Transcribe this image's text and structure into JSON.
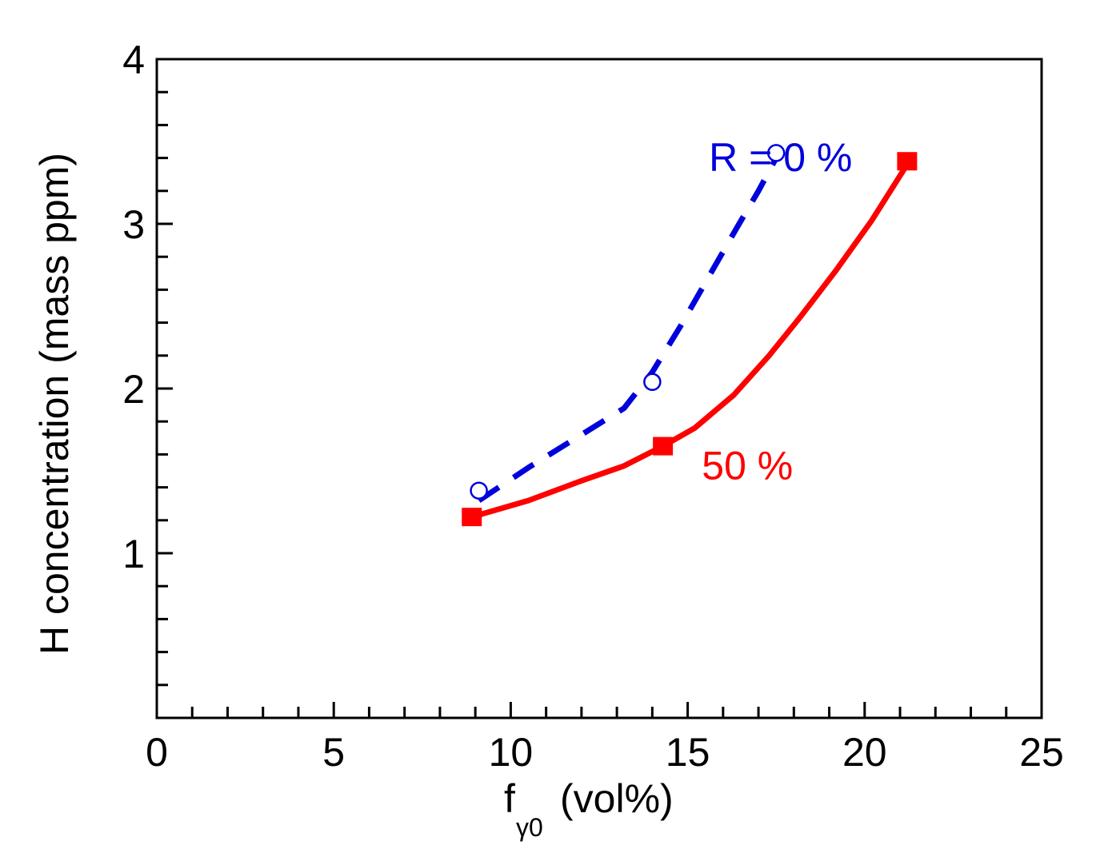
{
  "chart_data": {
    "type": "line",
    "xlabel": {
      "main": "f",
      "sub": "γ0",
      "unit": "(vol%)"
    },
    "ylabel": "H concentration (mass ppm)",
    "xlim": [
      0,
      25
    ],
    "ylim": [
      0,
      4
    ],
    "x_ticks": [
      "0",
      "5",
      "10",
      "15",
      "20",
      "25"
    ],
    "y_ticks": [
      "1",
      "2",
      "3",
      "4"
    ],
    "series": [
      {
        "name": "R = 0 %",
        "color": "#0000dd",
        "style": "dashed",
        "marker": "open-circle",
        "points": [
          {
            "x": 9.1,
            "y": 1.38
          },
          {
            "x": 14.0,
            "y": 2.04
          },
          {
            "x": 17.5,
            "y": 3.43
          }
        ],
        "curve": [
          [
            9.1,
            1.32
          ],
          [
            10.5,
            1.52
          ],
          [
            12.0,
            1.72
          ],
          [
            13.2,
            1.88
          ],
          [
            14.0,
            2.1
          ],
          [
            14.8,
            2.38
          ],
          [
            15.6,
            2.68
          ],
          [
            16.4,
            2.98
          ],
          [
            17.0,
            3.2
          ],
          [
            17.5,
            3.4
          ]
        ]
      },
      {
        "name": "50 %",
        "color": "#ff0000",
        "style": "solid",
        "marker": "filled-square",
        "points": [
          {
            "x": 8.9,
            "y": 1.22
          },
          {
            "x": 14.3,
            "y": 1.65
          },
          {
            "x": 21.2,
            "y": 3.38
          }
        ],
        "curve": [
          [
            8.9,
            1.22
          ],
          [
            10.5,
            1.32
          ],
          [
            12.0,
            1.44
          ],
          [
            13.2,
            1.53
          ],
          [
            14.3,
            1.65
          ],
          [
            15.2,
            1.76
          ],
          [
            16.3,
            1.96
          ],
          [
            17.3,
            2.2
          ],
          [
            18.2,
            2.44
          ],
          [
            19.2,
            2.72
          ],
          [
            20.2,
            3.02
          ],
          [
            21.2,
            3.36
          ]
        ]
      }
    ],
    "annotations": [
      {
        "text": "R = 0 %",
        "color": "#0000dd",
        "x": 15.6,
        "y": 3.32
      },
      {
        "text": "50 %",
        "color": "#ff0000",
        "x": 15.4,
        "y": 1.45
      }
    ]
  }
}
